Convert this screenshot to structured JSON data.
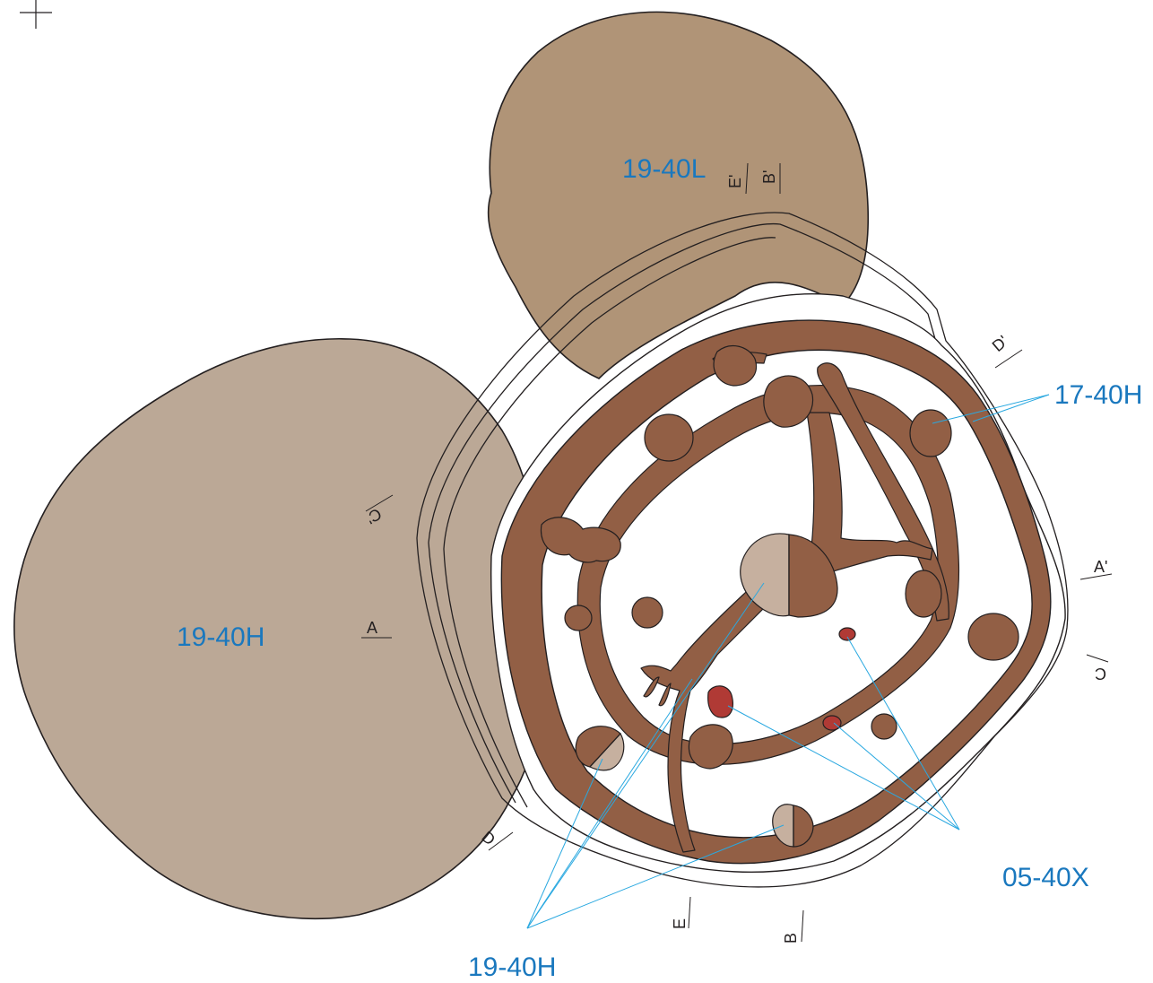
{
  "colors": {
    "feature_19_40L": "#b09477",
    "feature_19_40H": "#bba896",
    "wall_brown": "#925f45",
    "light_fill": "#c6b09f",
    "red_fill": "#b03a35",
    "label_blue": "#1a78be",
    "leader_line": "#29a8e0",
    "outline": "#231f20"
  },
  "labels": {
    "upper_pit": "19-40L",
    "left_pit": "19-40H",
    "postholes": "17-40H",
    "red_deposits": "05-40X",
    "light_fills": "19-40H"
  },
  "section_markers": {
    "a": "A",
    "a_prime": "A'",
    "b": "B",
    "b_prime": "B'",
    "c": "C",
    "c_prime": "C'",
    "d": "D",
    "d_prime": "D'",
    "e": "E",
    "e_prime": "E'"
  },
  "icons": {
    "registration_mark": "crosshair-icon"
  }
}
